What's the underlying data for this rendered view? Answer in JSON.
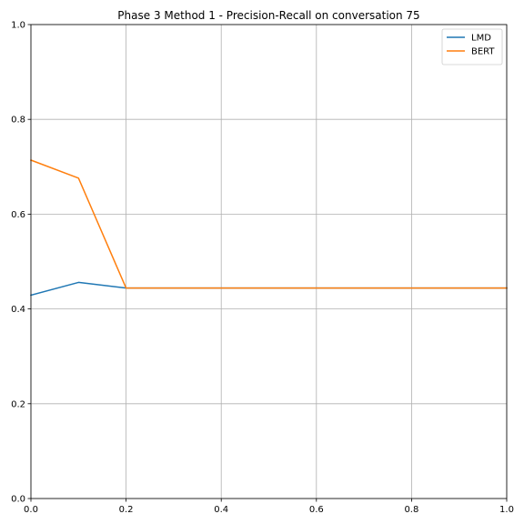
{
  "chart_data": {
    "type": "line",
    "title": "Phase 3 Method 1 - Precision-Recall on conversation 75",
    "xlabel": "",
    "ylabel": "",
    "xlim": [
      0,
      1
    ],
    "ylim": [
      0,
      1
    ],
    "x_ticks": [
      "0.0",
      "0.2",
      "0.4",
      "0.6",
      "0.8",
      "1.0"
    ],
    "y_ticks": [
      "0.0",
      "0.2",
      "0.4",
      "0.6",
      "0.8",
      "1.0"
    ],
    "grid": true,
    "legend_position": "top-right",
    "series": [
      {
        "name": "LMD",
        "color": "#1f77b4",
        "x": [
          0.0,
          0.1,
          0.2,
          0.3,
          0.4,
          0.5,
          0.6,
          0.7,
          0.8,
          0.9,
          1.0
        ],
        "y": [
          0.429,
          0.456,
          0.444,
          0.444,
          0.444,
          0.444,
          0.444,
          0.444,
          0.444,
          0.444,
          0.444
        ]
      },
      {
        "name": "BERT",
        "color": "#ff7f0e",
        "x": [
          0.0,
          0.1,
          0.2,
          0.3,
          0.4,
          0.5,
          0.6,
          0.7,
          0.8,
          0.9,
          1.0
        ],
        "y": [
          0.714,
          0.676,
          0.444,
          0.444,
          0.444,
          0.444,
          0.444,
          0.444,
          0.444,
          0.444,
          0.444
        ]
      }
    ]
  }
}
